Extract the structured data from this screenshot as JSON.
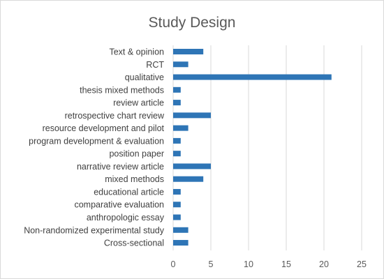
{
  "chart_data": {
    "type": "bar",
    "orientation": "horizontal",
    "title": "Study Design",
    "categories": [
      "Text & opinion",
      "RCT",
      "qualitative",
      "thesis mixed methods",
      "review article",
      "retrospective chart review",
      "resource development and pilot",
      "program development & evaluation",
      "position paper",
      "narrative review article",
      "mixed methods",
      "educational article",
      "comparative evaluation",
      "anthropologic essay",
      "Non-randomized experimental study",
      "Cross-sectional"
    ],
    "values": [
      4,
      2,
      21,
      1,
      1,
      5,
      2,
      1,
      1,
      5,
      4,
      1,
      1,
      1,
      2,
      2
    ],
    "xlim": [
      0,
      25
    ],
    "xticks": [
      0,
      5,
      10,
      15,
      20,
      25
    ],
    "xlabel": "",
    "ylabel": "",
    "grid": "vertical",
    "legend": "none",
    "colors": {
      "bar": "#2e75b6",
      "grid": "#d9d9d9",
      "text": "#404040",
      "title": "#595959"
    }
  }
}
